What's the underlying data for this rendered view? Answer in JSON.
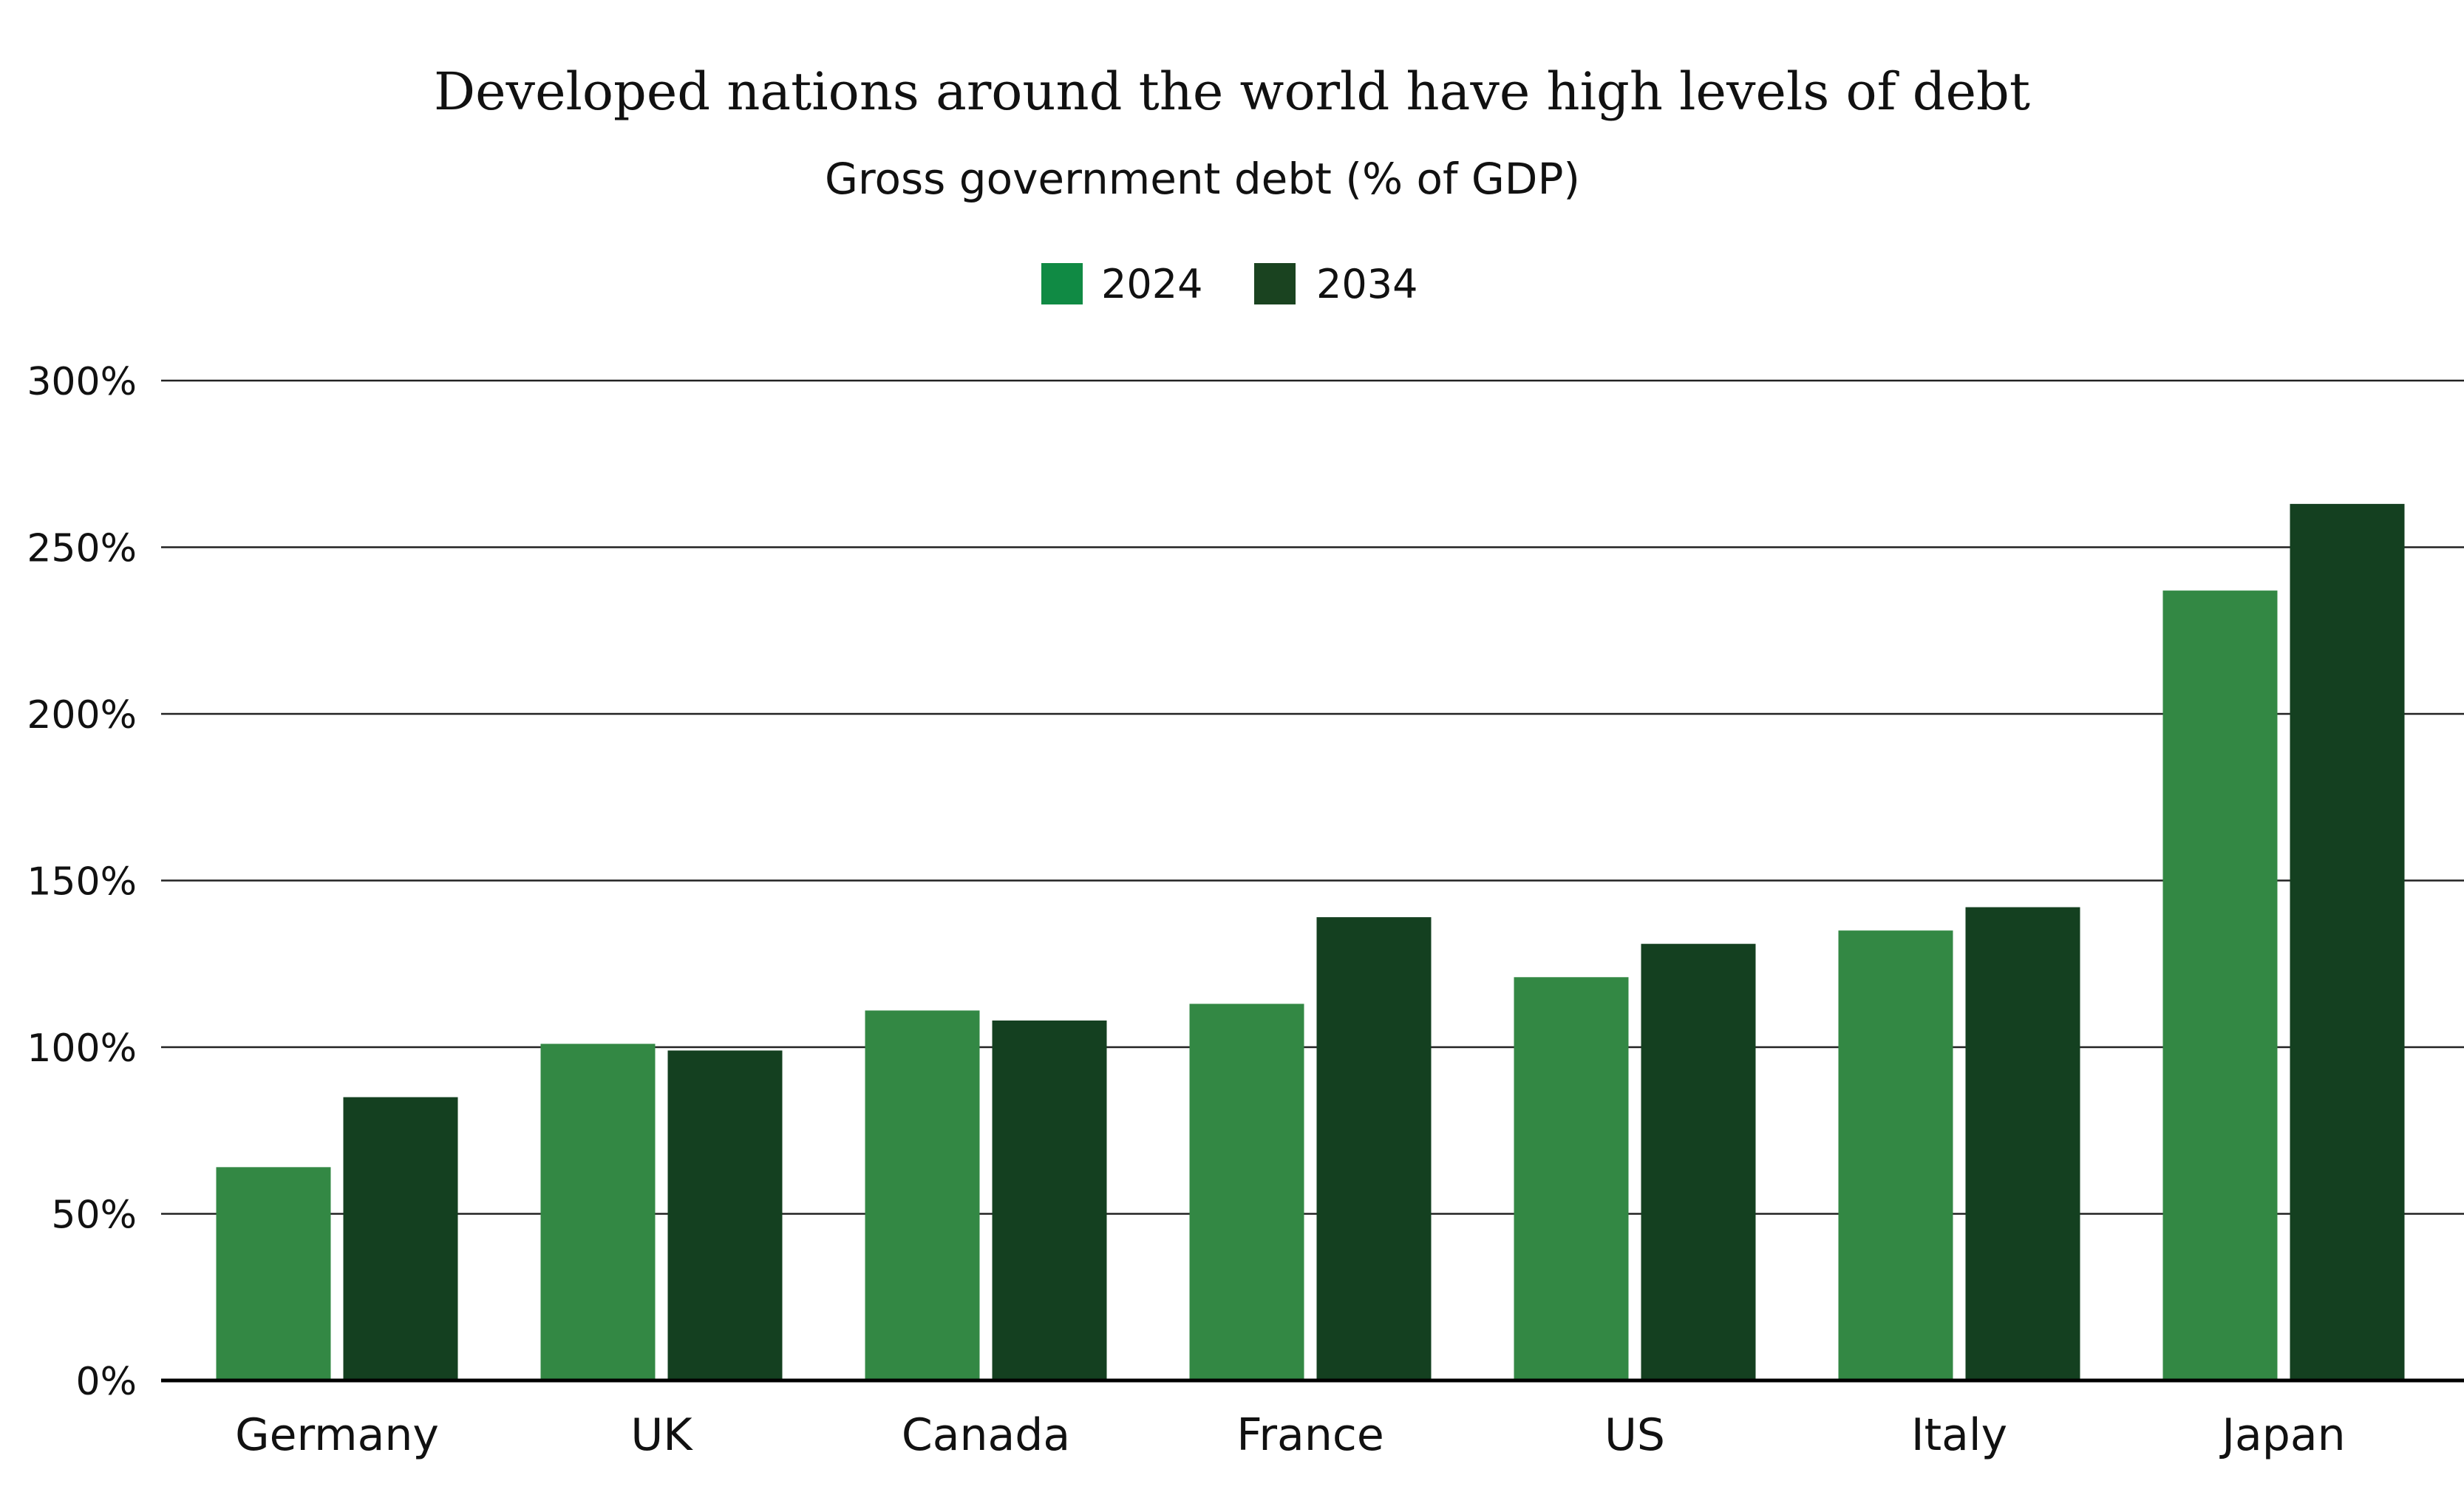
{
  "chart_data": {
    "type": "bar",
    "title": "Developed nations around the world have high levels of debt",
    "subtitle": "Gross government debt (% of GDP)",
    "xlabel": "",
    "ylabel": "",
    "categories": [
      "Germany",
      "UK",
      "Canada",
      "France",
      "US",
      "Italy",
      "Japan"
    ],
    "series": [
      {
        "name": "2024",
        "color": "#338844",
        "legend_color": "#108a44",
        "values": [
          64,
          101,
          111,
          113,
          121,
          135,
          237
        ]
      },
      {
        "name": "2034",
        "color": "#144020",
        "legend_color": "#1a4320",
        "values": [
          85,
          99,
          108,
          139,
          131,
          142,
          263
        ]
      }
    ],
    "ylim": [
      0,
      300
    ],
    "yticks": [
      0,
      50,
      100,
      150,
      200,
      250,
      300
    ],
    "ytick_labels": [
      "0%",
      "50%",
      "100%",
      "150%",
      "200%",
      "250%",
      "300%"
    ],
    "grid": true,
    "legend_position": "top-center"
  }
}
